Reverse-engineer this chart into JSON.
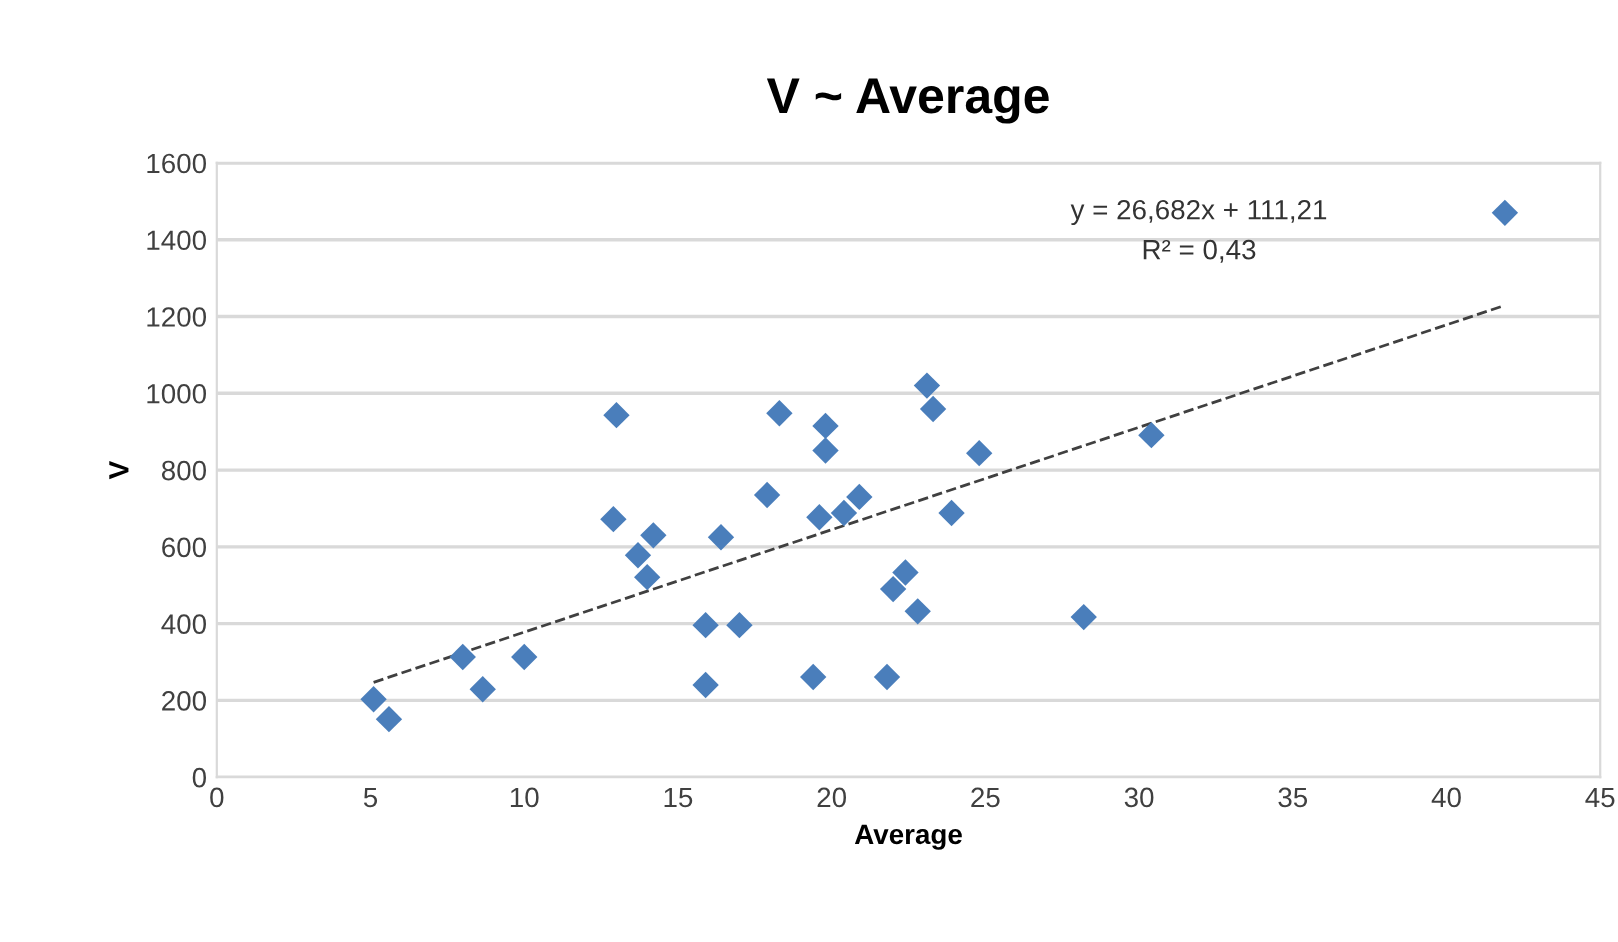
{
  "chart_data": {
    "type": "scatter",
    "title": "V ~ Average",
    "xlabel": "Average",
    "ylabel": "V",
    "xlim": [
      0,
      45
    ],
    "xticks": [
      0,
      5,
      10,
      15,
      20,
      25,
      30,
      35,
      40,
      45
    ],
    "ylim": [
      0,
      1600
    ],
    "yticks": [
      0,
      200,
      400,
      600,
      800,
      1000,
      1200,
      1400,
      1600
    ],
    "grid": "y",
    "legend": false,
    "series": [
      {
        "marker": "diamond",
        "color": "#4a7ebb",
        "x": [
          5.1,
          5.6,
          8.0,
          8.65,
          10.0,
          12.9,
          13.0,
          13.7,
          14.0,
          14.2,
          15.9,
          15.9,
          16.4,
          17.0,
          17.9,
          18.3,
          19.4,
          19.6,
          19.8,
          19.8,
          20.4,
          20.9,
          21.8,
          22.0,
          22.4,
          22.8,
          23.1,
          23.3,
          23.9,
          24.8,
          28.2,
          30.4,
          41.9
        ],
        "values": [
          203,
          151,
          313,
          229,
          313,
          672,
          943,
          578,
          521,
          630,
          396,
          240,
          625,
          396,
          735,
          948,
          261,
          677,
          915,
          851,
          688,
          730,
          261,
          490,
          533,
          432,
          1020,
          959,
          688,
          844,
          417,
          891,
          1470
        ]
      },
      {
        "type": "line",
        "line_style": "dashed",
        "color": "#404040",
        "x": [
          5.1,
          41.9
        ],
        "values": [
          247,
          1229
        ]
      }
    ],
    "annotations": [
      "y = 26,682x + 111,21",
      "R² = 0,43"
    ]
  }
}
